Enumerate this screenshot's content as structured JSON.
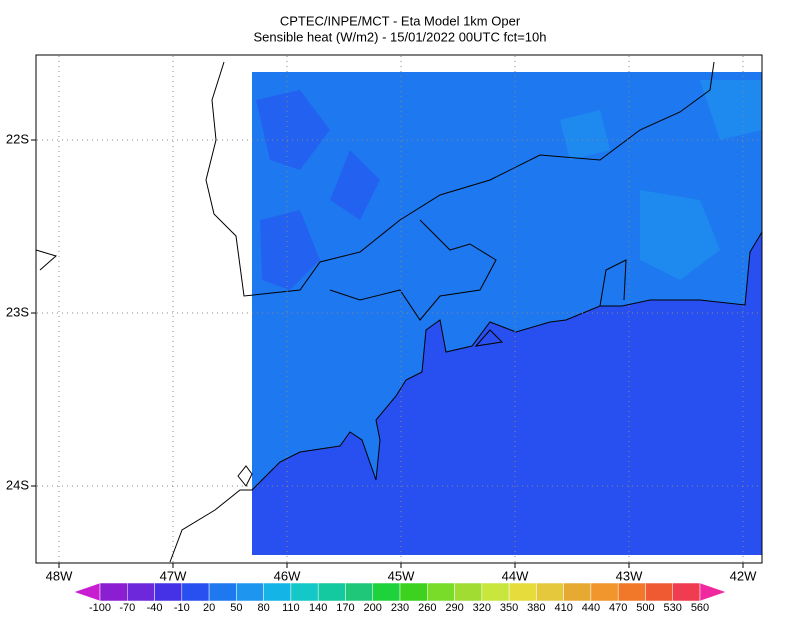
{
  "title": "CPTEC/INPE/MCT -  Eta Model 1km Oper",
  "subtitle": "Sensible heat (W/m2) - 15/01/2022 00UTC fct=10h",
  "lon_labels": [
    "48W",
    "47W",
    "46W",
    "45W",
    "44W",
    "43W",
    "42W"
  ],
  "lat_labels": [
    "22S",
    "23S",
    "24S"
  ],
  "colorbar": {
    "labels": [
      "-100",
      "-70",
      "-40",
      "-10",
      "20",
      "50",
      "80",
      "110",
      "140",
      "170",
      "200",
      "230",
      "260",
      "290",
      "320",
      "350",
      "380",
      "410",
      "440",
      "470",
      "500",
      "530",
      "560"
    ],
    "colors": [
      "#c81ed2",
      "#8c1ed2",
      "#6e28dc",
      "#4632e6",
      "#2850f0",
      "#1e78f0",
      "#1e96f0",
      "#14b4e6",
      "#14c8c8",
      "#14c8a0",
      "#1ec878",
      "#1ed23c",
      "#3cd21e",
      "#78dc28",
      "#a0dc32",
      "#c8e63c",
      "#e6dc3c",
      "#e6c83c",
      "#e6aa32",
      "#f0962d",
      "#f07828",
      "#f05a32",
      "#f03c50",
      "#f028a0"
    ]
  }
}
